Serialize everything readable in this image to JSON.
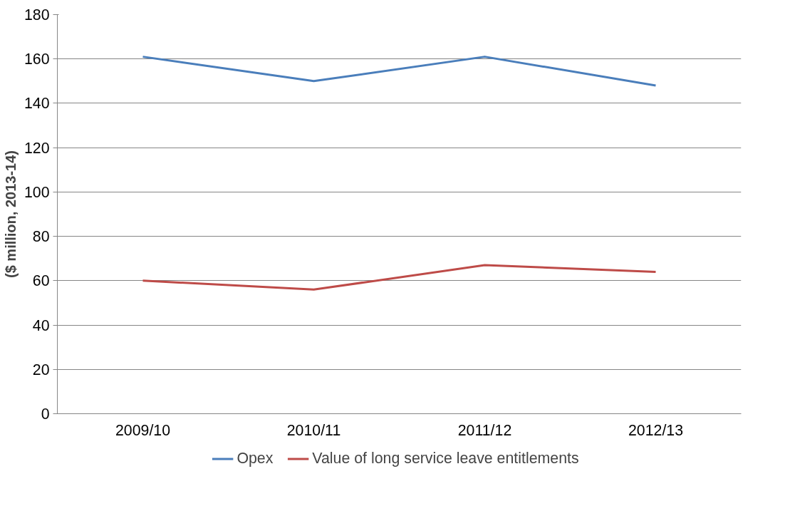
{
  "chart_data": {
    "type": "line",
    "ylabel": "($ million, 2013-14)",
    "categories": [
      "2009/10",
      "2010/11",
      "2011/12",
      "2012/13"
    ],
    "series": [
      {
        "name": "Opex",
        "color": "#4a7ebb",
        "values": [
          161,
          150,
          161,
          148
        ]
      },
      {
        "name": "Value of long service leave entitlements",
        "color": "#be4b48",
        "values": [
          60,
          56,
          67,
          64
        ]
      }
    ],
    "ylim": [
      0,
      180
    ],
    "yticks": [
      0,
      20,
      40,
      60,
      80,
      100,
      120,
      140,
      160,
      180
    ],
    "grid": "y",
    "legend": "bottom",
    "marker": "none",
    "line_style": "solid"
  }
}
